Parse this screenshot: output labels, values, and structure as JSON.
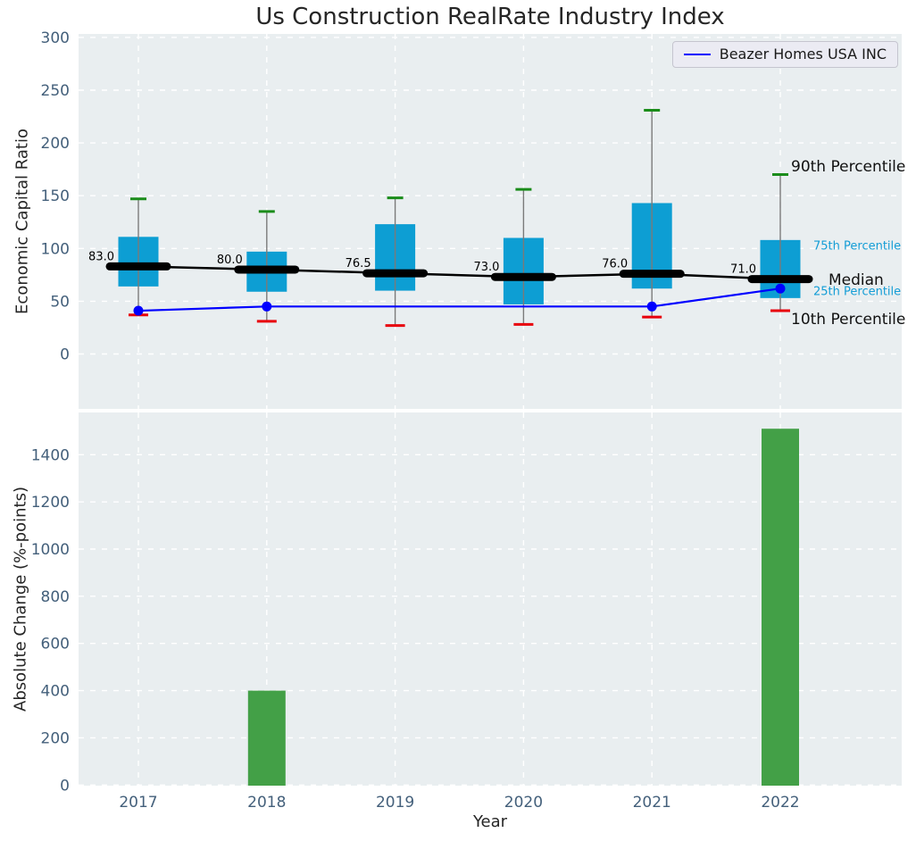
{
  "title": "Us Construction RealRate Industry Index",
  "legend": {
    "label": "Beazer Homes USA INC",
    "line_color": "#0000ff"
  },
  "colors": {
    "plot_bg": "#e9eef0",
    "grid": "#ffffff",
    "tick": "#44607b",
    "text": "#262626",
    "box_fill": "#0d9ed3",
    "cap_green": "#1a8c1a",
    "cap_red": "#e8000b",
    "whisker": "#7a7a7a",
    "median_line": "#000000",
    "company_line": "#0000ff",
    "bar_fill": "#43a047",
    "cyan_label": "#149dd6"
  },
  "chart_data": [
    {
      "type": "boxplot",
      "title": "Us Construction RealRate Industry Index",
      "ylabel": "Economic Capital Ratio",
      "yticks": [
        0,
        50,
        100,
        150,
        200,
        250,
        300
      ],
      "ylim": [
        -54,
        303
      ],
      "grid": true,
      "legend_position": "upper right",
      "categories": [
        "2017",
        "2018",
        "2019",
        "2020",
        "2021",
        "2022"
      ],
      "boxes": [
        {
          "year": "2017",
          "p10": 37,
          "p25": 64,
          "median": 83.0,
          "p75": 111,
          "p90": 147
        },
        {
          "year": "2018",
          "p10": 31,
          "p25": 59,
          "median": 80.0,
          "p75": 97,
          "p90": 135
        },
        {
          "year": "2019",
          "p10": 27,
          "p25": 60,
          "median": 76.5,
          "p75": 123,
          "p90": 148
        },
        {
          "year": "2020",
          "p10": 28,
          "p25": 47,
          "median": 73.0,
          "p75": 110,
          "p90": 156
        },
        {
          "year": "2021",
          "p10": 35,
          "p25": 62,
          "median": 76.0,
          "p75": 143,
          "p90": 231
        },
        {
          "year": "2022",
          "p10": 41,
          "p25": 53,
          "median": 71.0,
          "p75": 108,
          "p90": 170
        }
      ],
      "median_labels": [
        "83.0",
        "80.0",
        "76.5",
        "73.0",
        "76.0",
        "71.0"
      ],
      "company_series": {
        "name": "Beazer Homes USA INC",
        "points": [
          {
            "year": "2017",
            "value": 41
          },
          {
            "year": "2018",
            "value": 45
          },
          {
            "year": "2021",
            "value": 45
          },
          {
            "year": "2022",
            "value": 62
          }
        ]
      },
      "percentile_labels": {
        "p90": "90th Percentile",
        "p75": "75th Percentile",
        "median": "Median",
        "p25": "25th Percentile",
        "p10": "10th Percentile"
      }
    },
    {
      "type": "bar",
      "ylabel": "Absolute Change (%-points)",
      "xlabel": "Year",
      "yticks": [
        0,
        200,
        400,
        600,
        800,
        1000,
        1200,
        1400
      ],
      "ylim": [
        0,
        1575
      ],
      "grid": true,
      "categories": [
        "2017",
        "2018",
        "2019",
        "2020",
        "2021",
        "2022"
      ],
      "values": [
        0,
        400,
        0,
        0,
        0,
        1510
      ]
    }
  ]
}
